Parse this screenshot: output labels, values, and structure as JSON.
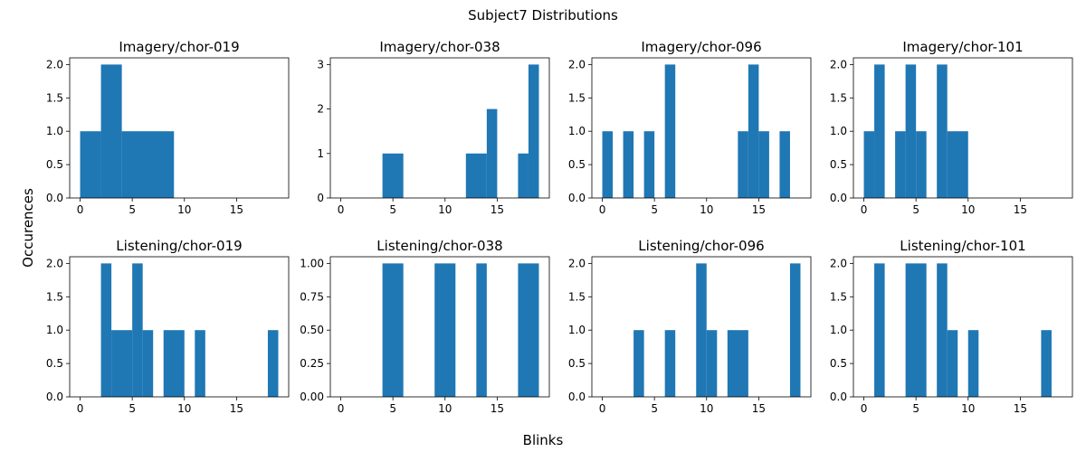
{
  "figure": {
    "suptitle": "Subject7 Distributions",
    "xlabel": "Blinks",
    "ylabel": "Occurences",
    "bar_color": "#1f77b4"
  },
  "chart_data": [
    {
      "type": "bar",
      "title": "Imagery/chor-019",
      "bins": [
        [
          0,
          2,
          1
        ],
        [
          2,
          4,
          2
        ],
        [
          4,
          9,
          1
        ]
      ],
      "xlim": [
        -1,
        20
      ],
      "ylim": [
        0,
        2.1
      ],
      "xticks": [
        0,
        5,
        10,
        15
      ],
      "xtick_labels": [
        "0",
        "5",
        "10",
        "15"
      ],
      "yticks": [
        0,
        0.5,
        1,
        1.5,
        2
      ],
      "ytick_labels": [
        "0.0",
        "0.5",
        "1.0",
        "1.5",
        "2.0"
      ]
    },
    {
      "type": "bar",
      "title": "Imagery/chor-038",
      "bins": [
        [
          4,
          6,
          1
        ],
        [
          12,
          14,
          1
        ],
        [
          14,
          15,
          2
        ],
        [
          17,
          18,
          1
        ],
        [
          18,
          19,
          3
        ]
      ],
      "xlim": [
        -1,
        20
      ],
      "ylim": [
        0,
        3.15
      ],
      "xticks": [
        0,
        5,
        10,
        15
      ],
      "xtick_labels": [
        "0",
        "5",
        "10",
        "15"
      ],
      "yticks": [
        0,
        1,
        2,
        3
      ],
      "ytick_labels": [
        "0",
        "1",
        "2",
        "3"
      ]
    },
    {
      "type": "bar",
      "title": "Imagery/chor-096",
      "bins": [
        [
          0,
          1,
          1
        ],
        [
          2,
          3,
          1
        ],
        [
          4,
          5,
          1
        ],
        [
          6,
          7,
          2
        ],
        [
          13,
          14,
          1
        ],
        [
          14,
          15,
          2
        ],
        [
          15,
          16,
          1
        ],
        [
          17,
          18,
          1
        ]
      ],
      "xlim": [
        -1,
        20
      ],
      "ylim": [
        0,
        2.1
      ],
      "xticks": [
        0,
        5,
        10,
        15
      ],
      "xtick_labels": [
        "0",
        "5",
        "10",
        "15"
      ],
      "yticks": [
        0,
        0.5,
        1,
        1.5,
        2
      ],
      "ytick_labels": [
        "0.0",
        "0.5",
        "1.0",
        "1.5",
        "2.0"
      ]
    },
    {
      "type": "bar",
      "title": "Imagery/chor-101",
      "bins": [
        [
          0,
          1,
          1
        ],
        [
          1,
          2,
          2
        ],
        [
          3,
          4,
          1
        ],
        [
          4,
          5,
          2
        ],
        [
          5,
          6,
          1
        ],
        [
          7,
          8,
          2
        ],
        [
          8,
          10,
          1
        ]
      ],
      "xlim": [
        -1,
        20
      ],
      "ylim": [
        0,
        2.1
      ],
      "xticks": [
        0,
        5,
        10,
        15
      ],
      "xtick_labels": [
        "0",
        "5",
        "10",
        "15"
      ],
      "yticks": [
        0,
        0.5,
        1,
        1.5,
        2
      ],
      "ytick_labels": [
        "0.0",
        "0.5",
        "1.0",
        "1.5",
        "2.0"
      ]
    },
    {
      "type": "bar",
      "title": "Listening/chor-019",
      "bins": [
        [
          2,
          3,
          2
        ],
        [
          3,
          5,
          1
        ],
        [
          5,
          6,
          2
        ],
        [
          6,
          7,
          1
        ],
        [
          8,
          10,
          1
        ],
        [
          11,
          12,
          1
        ],
        [
          18,
          19,
          1
        ]
      ],
      "xlim": [
        -1,
        20
      ],
      "ylim": [
        0,
        2.1
      ],
      "xticks": [
        0,
        5,
        10,
        15
      ],
      "xtick_labels": [
        "0",
        "5",
        "10",
        "15"
      ],
      "yticks": [
        0,
        0.5,
        1,
        1.5,
        2
      ],
      "ytick_labels": [
        "0.0",
        "0.5",
        "1.0",
        "1.5",
        "2.0"
      ]
    },
    {
      "type": "bar",
      "title": "Listening/chor-038",
      "bins": [
        [
          4,
          6,
          1
        ],
        [
          9,
          11,
          1
        ],
        [
          13,
          14,
          1
        ],
        [
          17,
          19,
          1
        ]
      ],
      "xlim": [
        -1,
        20
      ],
      "ylim": [
        0,
        1.05
      ],
      "xticks": [
        0,
        5,
        10,
        15
      ],
      "xtick_labels": [
        "0",
        "5",
        "10",
        "15"
      ],
      "yticks": [
        0,
        0.25,
        0.5,
        0.75,
        1
      ],
      "ytick_labels": [
        "0.00",
        "0.25",
        "0.50",
        "0.75",
        "1.00"
      ]
    },
    {
      "type": "bar",
      "title": "Listening/chor-096",
      "bins": [
        [
          3,
          4,
          1
        ],
        [
          6,
          7,
          1
        ],
        [
          9,
          10,
          2
        ],
        [
          10,
          11,
          1
        ],
        [
          12,
          14,
          1
        ],
        [
          18,
          19,
          2
        ]
      ],
      "xlim": [
        -1,
        20
      ],
      "ylim": [
        0,
        2.1
      ],
      "xticks": [
        0,
        5,
        10,
        15
      ],
      "xtick_labels": [
        "0",
        "5",
        "10",
        "15"
      ],
      "yticks": [
        0,
        0.5,
        1,
        1.5,
        2
      ],
      "ytick_labels": [
        "0.0",
        "0.5",
        "1.0",
        "1.5",
        "2.0"
      ]
    },
    {
      "type": "bar",
      "title": "Listening/chor-101",
      "bins": [
        [
          1,
          2,
          2
        ],
        [
          4,
          6,
          2
        ],
        [
          7,
          8,
          2
        ],
        [
          8,
          9,
          1
        ],
        [
          10,
          11,
          1
        ],
        [
          17,
          18,
          1
        ]
      ],
      "xlim": [
        -1,
        20
      ],
      "ylim": [
        0,
        2.1
      ],
      "xticks": [
        0,
        5,
        10,
        15
      ],
      "xtick_labels": [
        "0",
        "5",
        "10",
        "15"
      ],
      "yticks": [
        0,
        0.5,
        1,
        1.5,
        2
      ],
      "ytick_labels": [
        "0.0",
        "0.5",
        "1.0",
        "1.5",
        "2.0"
      ]
    }
  ]
}
